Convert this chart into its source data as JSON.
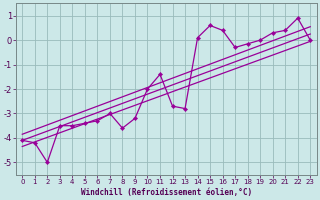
{
  "bg_color": "#cce8e8",
  "grid_color": "#99bbbb",
  "line_color": "#990099",
  "marker_color": "#990099",
  "xlabel": "Windchill (Refroidissement éolien,°C)",
  "xlim": [
    -0.5,
    23.5
  ],
  "ylim": [
    -5.5,
    1.5
  ],
  "yticks": [
    1,
    0,
    -1,
    -2,
    -3,
    -4,
    -5
  ],
  "xticks": [
    0,
    1,
    2,
    3,
    4,
    5,
    6,
    7,
    8,
    9,
    10,
    11,
    12,
    13,
    14,
    15,
    16,
    17,
    18,
    19,
    20,
    21,
    22,
    23
  ],
  "main_series_x": [
    0,
    1,
    2,
    3,
    4,
    5,
    6,
    7,
    8,
    9,
    10,
    11,
    12,
    13,
    14,
    15,
    16,
    17,
    18,
    19,
    20,
    21,
    22,
    23
  ],
  "main_series_y": [
    -4.1,
    -4.2,
    -5.0,
    -3.5,
    -3.5,
    -3.4,
    -3.3,
    -3.0,
    -3.6,
    -3.2,
    -2.0,
    -1.4,
    -2.7,
    -2.8,
    0.1,
    0.6,
    0.4,
    -0.3,
    -0.15,
    0.0,
    0.3,
    0.4,
    0.9,
    0.0
  ],
  "trend1_x": [
    0,
    23
  ],
  "trend1_y": [
    -4.35,
    -0.05
  ],
  "trend2_x": [
    0,
    23
  ],
  "trend2_y": [
    -4.1,
    0.25
  ],
  "trend3_x": [
    0,
    23
  ],
  "trend3_y": [
    -3.85,
    0.55
  ]
}
